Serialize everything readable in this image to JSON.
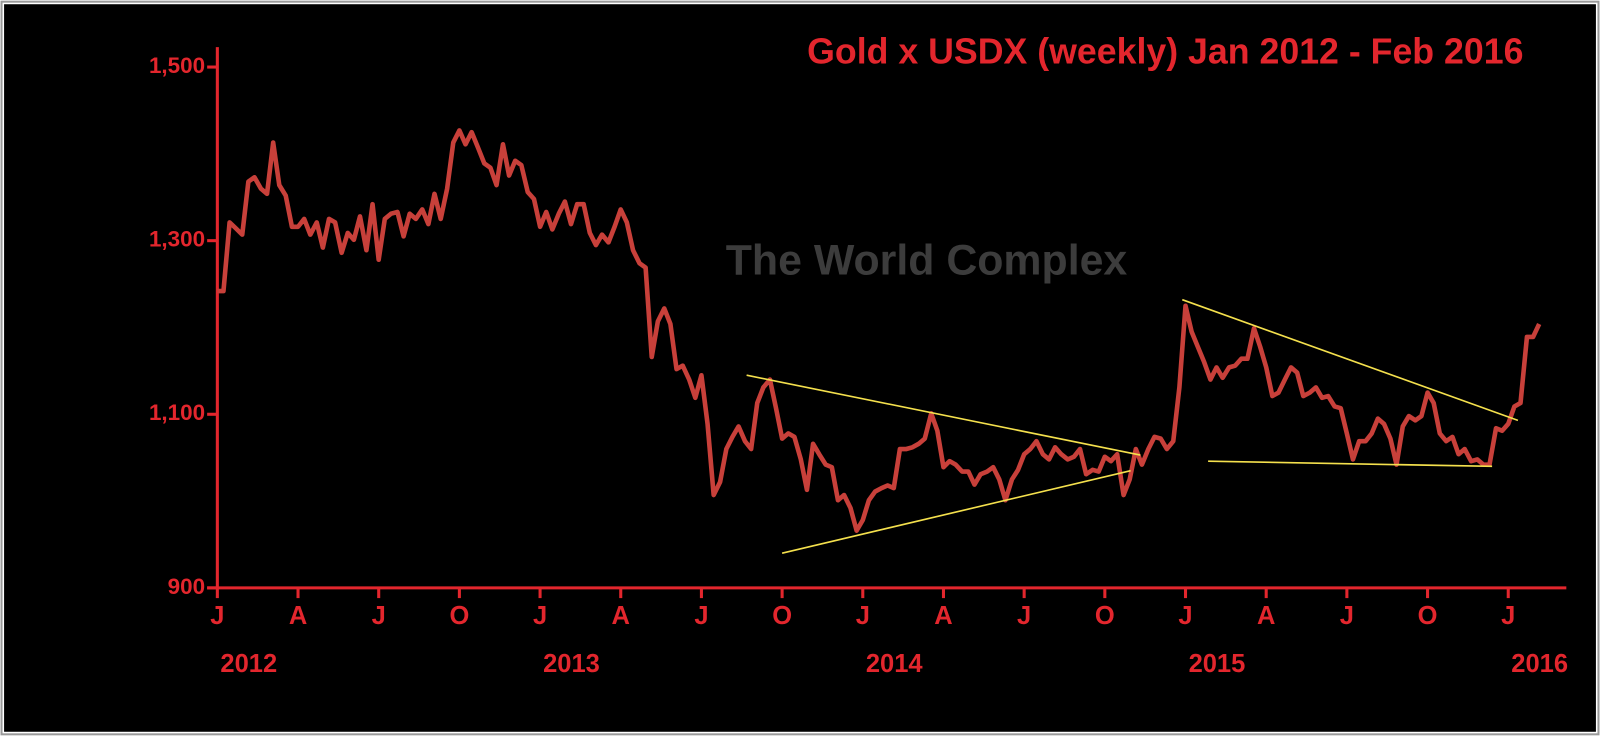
{
  "chart_data": {
    "type": "line",
    "title": "Gold x USDX (weekly) Jan 2012 - Feb 2016",
    "watermark": "The World Complex",
    "color": "#c8403a",
    "text_color": "#e3262d",
    "trend_color": "#f4e04d",
    "xlim": [
      2012,
      2016.18
    ],
    "ylim": [
      900,
      1523
    ],
    "yticks": [
      {
        "value": 900,
        "label": "900"
      },
      {
        "value": 1100,
        "label": "1,100"
      },
      {
        "value": 1300,
        "label": "1,300"
      },
      {
        "value": 1500,
        "label": "1,500"
      }
    ],
    "xticks": [
      {
        "value": 2012,
        "label": "J"
      },
      {
        "value": 2012.25,
        "label": "A"
      },
      {
        "value": 2012.5,
        "label": "J"
      },
      {
        "value": 2012.75,
        "label": "O"
      },
      {
        "value": 2013,
        "label": "J"
      },
      {
        "value": 2013.25,
        "label": "A"
      },
      {
        "value": 2013.5,
        "label": "J"
      },
      {
        "value": 2013.75,
        "label": "O"
      },
      {
        "value": 2014,
        "label": "J"
      },
      {
        "value": 2014.25,
        "label": "A"
      },
      {
        "value": 2014.5,
        "label": "J"
      },
      {
        "value": 2014.75,
        "label": "O"
      },
      {
        "value": 2015,
        "label": "J"
      },
      {
        "value": 2015.25,
        "label": "A"
      },
      {
        "value": 2015.5,
        "label": "J"
      },
      {
        "value": 2015.75,
        "label": "O"
      },
      {
        "value": 2016,
        "label": "J"
      }
    ],
    "year_labels": [
      2012,
      2013,
      2014,
      2015,
      2016
    ],
    "x": [
      2012,
      2012.019,
      2012.038,
      2012.058,
      2012.077,
      2012.096,
      2012.115,
      2012.135,
      2012.154,
      2012.173,
      2012.192,
      2012.212,
      2012.231,
      2012.25,
      2012.269,
      2012.288,
      2012.308,
      2012.327,
      2012.346,
      2012.365,
      2012.385,
      2012.404,
      2012.423,
      2012.442,
      2012.462,
      2012.481,
      2012.5,
      2012.519,
      2012.538,
      2012.558,
      2012.577,
      2012.596,
      2012.615,
      2012.635,
      2012.654,
      2012.673,
      2012.692,
      2012.712,
      2012.731,
      2012.75,
      2012.769,
      2012.788,
      2012.808,
      2012.827,
      2012.846,
      2012.865,
      2012.885,
      2012.904,
      2012.923,
      2012.942,
      2012.962,
      2012.981,
      2013,
      2013.019,
      2013.038,
      2013.058,
      2013.077,
      2013.096,
      2013.115,
      2013.135,
      2013.154,
      2013.173,
      2013.192,
      2013.212,
      2013.231,
      2013.25,
      2013.269,
      2013.288,
      2013.308,
      2013.327,
      2013.346,
      2013.365,
      2013.385,
      2013.404,
      2013.423,
      2013.442,
      2013.462,
      2013.481,
      2013.5,
      2013.519,
      2013.538,
      2013.558,
      2013.577,
      2013.596,
      2013.615,
      2013.635,
      2013.654,
      2013.673,
      2013.692,
      2013.712,
      2013.731,
      2013.75,
      2013.769,
      2013.788,
      2013.808,
      2013.827,
      2013.846,
      2013.865,
      2013.885,
      2013.904,
      2013.923,
      2013.942,
      2013.962,
      2013.981,
      2014,
      2014.019,
      2014.038,
      2014.058,
      2014.077,
      2014.096,
      2014.115,
      2014.135,
      2014.154,
      2014.173,
      2014.192,
      2014.212,
      2014.231,
      2014.25,
      2014.269,
      2014.288,
      2014.308,
      2014.327,
      2014.346,
      2014.365,
      2014.385,
      2014.404,
      2014.423,
      2014.442,
      2014.462,
      2014.481,
      2014.5,
      2014.519,
      2014.538,
      2014.558,
      2014.577,
      2014.596,
      2014.615,
      2014.635,
      2014.654,
      2014.673,
      2014.692,
      2014.712,
      2014.731,
      2014.75,
      2014.769,
      2014.788,
      2014.808,
      2014.827,
      2014.846,
      2014.865,
      2014.885,
      2014.904,
      2014.923,
      2014.942,
      2014.962,
      2014.981,
      2015,
      2015.019,
      2015.038,
      2015.058,
      2015.077,
      2015.096,
      2015.115,
      2015.135,
      2015.154,
      2015.173,
      2015.192,
      2015.212,
      2015.231,
      2015.25,
      2015.269,
      2015.288,
      2015.308,
      2015.327,
      2015.346,
      2015.365,
      2015.385,
      2015.404,
      2015.423,
      2015.442,
      2015.462,
      2015.481,
      2015.5,
      2015.519,
      2015.538,
      2015.558,
      2015.577,
      2015.596,
      2015.615,
      2015.635,
      2015.654,
      2015.673,
      2015.692,
      2015.712,
      2015.731,
      2015.75,
      2015.769,
      2015.788,
      2015.808,
      2015.827,
      2015.846,
      2015.865,
      2015.885,
      2015.904,
      2015.923,
      2015.942,
      2015.962,
      2015.981,
      2016,
      2016.019,
      2016.038,
      2016.058,
      2016.077,
      2016.096
    ],
    "values": [
      1242,
      1242,
      1321,
      1314,
      1307,
      1368,
      1373,
      1360,
      1354,
      1413,
      1364,
      1352,
      1316,
      1316,
      1325,
      1307,
      1321,
      1292,
      1325,
      1321,
      1286,
      1309,
      1301,
      1328,
      1289,
      1342,
      1278,
      1325,
      1331,
      1333,
      1305,
      1331,
      1325,
      1336,
      1319,
      1354,
      1325,
      1360,
      1413,
      1427,
      1411,
      1425,
      1407,
      1389,
      1384,
      1364,
      1411,
      1375,
      1392,
      1387,
      1356,
      1348,
      1316,
      1333,
      1313,
      1331,
      1345,
      1319,
      1342,
      1342,
      1309,
      1295,
      1307,
      1298,
      1316,
      1336,
      1321,
      1289,
      1274,
      1269,
      1166,
      1207,
      1222,
      1204,
      1152,
      1156,
      1140,
      1119,
      1145,
      1089,
      1007,
      1022,
      1060,
      1074,
      1086,
      1069,
      1060,
      1113,
      1131,
      1140,
      1107,
      1072,
      1078,
      1074,
      1048,
      1013,
      1066,
      1054,
      1042,
      1039,
      1001,
      1007,
      992,
      966,
      978,
      1001,
      1011,
      1015,
      1018,
      1015,
      1060,
      1060,
      1062,
      1066,
      1072,
      1101,
      1081,
      1039,
      1046,
      1042,
      1034,
      1034,
      1019,
      1031,
      1034,
      1039,
      1025,
      1001,
      1025,
      1036,
      1054,
      1060,
      1069,
      1054,
      1048,
      1062,
      1054,
      1048,
      1051,
      1060,
      1031,
      1036,
      1034,
      1051,
      1046,
      1054,
      1007,
      1025,
      1060,
      1042,
      1060,
      1074,
      1072,
      1060,
      1069,
      1131,
      1225,
      1195,
      1178,
      1160,
      1140,
      1154,
      1142,
      1154,
      1156,
      1164,
      1164,
      1199,
      1178,
      1154,
      1121,
      1125,
      1140,
      1154,
      1148,
      1121,
      1125,
      1131,
      1119,
      1121,
      1109,
      1107,
      1078,
      1048,
      1069,
      1069,
      1078,
      1095,
      1089,
      1072,
      1042,
      1086,
      1098,
      1093,
      1098,
      1125,
      1113,
      1078,
      1069,
      1074,
      1054,
      1060,
      1046,
      1048,
      1042,
      1042,
      1084,
      1081,
      1089,
      1109,
      1113,
      1189,
      1189,
      1204
    ],
    "trend_lines": [
      {
        "x": [
          2013.64,
          2014.86
        ],
        "y": [
          1145,
          1053
        ]
      },
      {
        "x": [
          2013.75,
          2014.83
        ],
        "y": [
          940,
          1035
        ]
      },
      {
        "x": [
          2014.99,
          2016.03
        ],
        "y": [
          1232,
          1093
        ]
      },
      {
        "x": [
          2015.07,
          2015.95
        ],
        "y": [
          1046,
          1040
        ]
      }
    ]
  }
}
